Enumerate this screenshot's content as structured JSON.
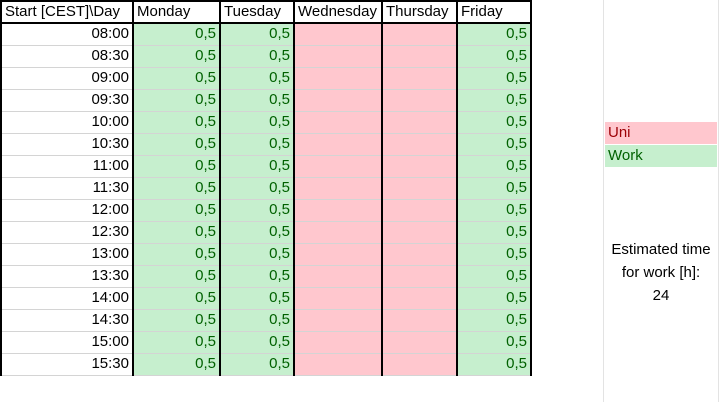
{
  "sheet": {
    "headers": {
      "corner": "Start [CEST]\\Day",
      "monday": "Monday",
      "tuesday": "Tuesday",
      "wednesday": "Wednesday",
      "thursday": "Thursday",
      "friday": "Friday"
    },
    "rows": [
      {
        "time": "08:00",
        "mon": "0,5",
        "tue": "0,5",
        "fri": "0,5"
      },
      {
        "time": "08:30",
        "mon": "0,5",
        "tue": "0,5",
        "fri": "0,5"
      },
      {
        "time": "09:00",
        "mon": "0,5",
        "tue": "0,5",
        "fri": "0,5"
      },
      {
        "time": "09:30",
        "mon": "0,5",
        "tue": "0,5",
        "fri": "0,5"
      },
      {
        "time": "10:00",
        "mon": "0,5",
        "tue": "0,5",
        "fri": "0,5"
      },
      {
        "time": "10:30",
        "mon": "0,5",
        "tue": "0,5",
        "fri": "0,5"
      },
      {
        "time": "11:00",
        "mon": "0,5",
        "tue": "0,5",
        "fri": "0,5"
      },
      {
        "time": "11:30",
        "mon": "0,5",
        "tue": "0,5",
        "fri": "0,5"
      },
      {
        "time": "12:00",
        "mon": "0,5",
        "tue": "0,5",
        "fri": "0,5"
      },
      {
        "time": "12:30",
        "mon": "0,5",
        "tue": "0,5",
        "fri": "0,5"
      },
      {
        "time": "13:00",
        "mon": "0,5",
        "tue": "0,5",
        "fri": "0,5"
      },
      {
        "time": "13:30",
        "mon": "0,5",
        "tue": "0,5",
        "fri": "0,5"
      },
      {
        "time": "14:00",
        "mon": "0,5",
        "tue": "0,5",
        "fri": "0,5"
      },
      {
        "time": "14:30",
        "mon": "0,5",
        "tue": "0,5",
        "fri": "0,5"
      },
      {
        "time": "15:00",
        "mon": "0,5",
        "tue": "0,5",
        "fri": "0,5"
      },
      {
        "time": "15:30",
        "mon": "0,5",
        "tue": "0,5",
        "fri": "0,5"
      }
    ]
  },
  "legend": {
    "uni": "Uni",
    "work": "Work"
  },
  "estimate": {
    "line1": "Estimated time",
    "line2": "for work [h]:",
    "value": "24"
  },
  "colors": {
    "work_fill": "#c6efce",
    "work_text": "#006100",
    "uni_fill": "#ffc7ce",
    "uni_text": "#9c0006"
  }
}
